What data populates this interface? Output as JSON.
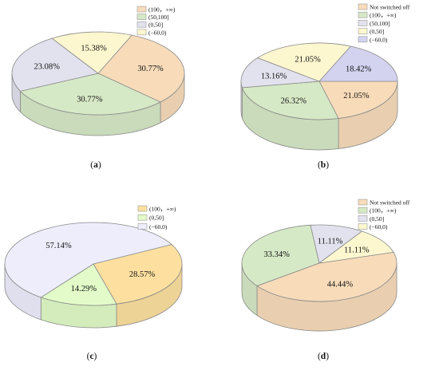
{
  "chart_data": [
    {
      "panel_label": "(a)",
      "type": "pie",
      "legend_placement": "top-right",
      "slices": [
        {
          "label": "(100，+∞)",
          "value": 30.77,
          "value_label": "30.77%",
          "color": "#f8dcba"
        },
        {
          "label": "(50,100]",
          "value": 30.77,
          "value_label": "30.77%",
          "color": "#d6e9c6"
        },
        {
          "label": "(0,50]",
          "value": 23.08,
          "value_label": "23.08%",
          "color": "#e2e2ee"
        },
        {
          "label": "(−60,0)",
          "value": 15.38,
          "value_label": "15.38%",
          "color": "#fdf7d0"
        }
      ]
    },
    {
      "panel_label": "(b)",
      "type": "pie",
      "legend_placement": "top-right",
      "slices": [
        {
          "label": "Not switched off",
          "value": 21.05,
          "value_label": "21.05%",
          "color": "#f8dcba"
        },
        {
          "label": "(100，+∞)",
          "value": 26.32,
          "value_label": "26.32%",
          "color": "#d6e9c6"
        },
        {
          "label": "(50,100]",
          "value": 13.16,
          "value_label": "13.16%",
          "color": "#e2e2ee"
        },
        {
          "label": "(0,50]",
          "value": 21.05,
          "value_label": "21.05%",
          "color": "#fdf7d0"
        },
        {
          "label": "(−60,0)",
          "value": 18.42,
          "value_label": "18.42%",
          "color": "#d3d3f0"
        }
      ]
    },
    {
      "panel_label": "(c)",
      "type": "pie",
      "legend_placement": "top-right",
      "slices": [
        {
          "label": "(100，+∞)",
          "value": 28.57,
          "value_label": "28.57%",
          "color": "#fde0a0"
        },
        {
          "label": "(0,50]",
          "value": 14.29,
          "value_label": "14.29%",
          "color": "#e2fbc8"
        },
        {
          "label": "(−60,0)",
          "value": 57.14,
          "value_label": "57.14%",
          "color": "#ededfc"
        }
      ]
    },
    {
      "panel_label": "(d)",
      "type": "pie",
      "legend_placement": "top-right",
      "slices": [
        {
          "label": "Not switched off",
          "value": 44.44,
          "value_label": "44.44%",
          "color": "#f8dcba"
        },
        {
          "label": "(100，+∞)",
          "value": 33.34,
          "value_label": "33.34%",
          "color": "#d6e9c6"
        },
        {
          "label": "(0,50]",
          "value": 11.11,
          "value_label": "11.11%",
          "color": "#e2e2ee"
        },
        {
          "label": "(−60,0)",
          "value": 11.11,
          "value_label": "11.11%",
          "color": "#fdf7d0"
        }
      ]
    }
  ]
}
